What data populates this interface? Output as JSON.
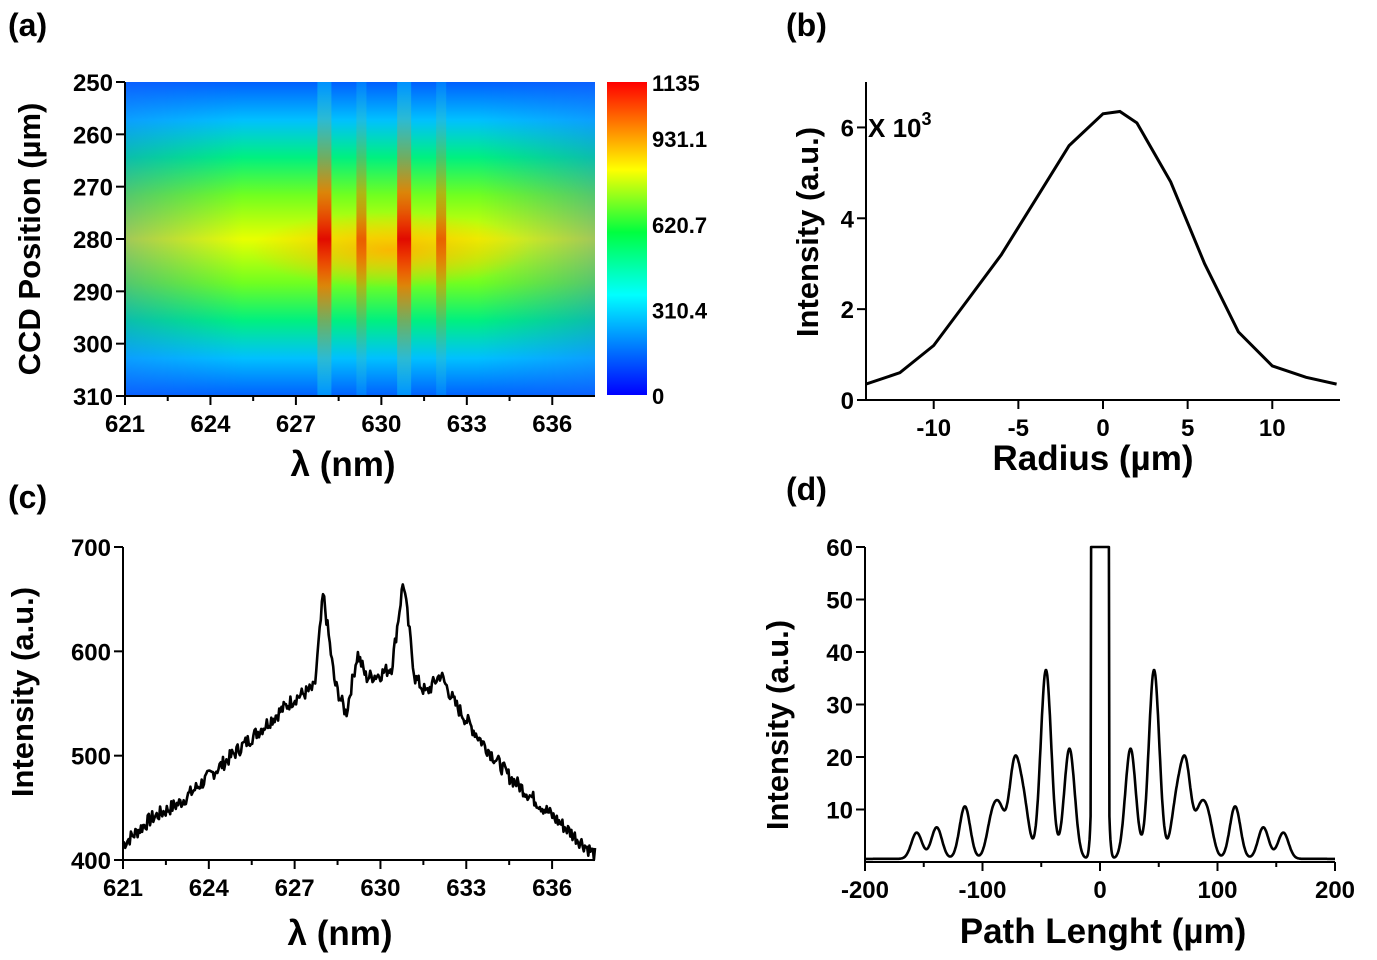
{
  "figure": {
    "panels": [
      "(a)",
      "(b)",
      "(c)",
      "(d)"
    ]
  },
  "chart_data": [
    {
      "id": "a",
      "type": "heatmap",
      "panel_label": "(a)",
      "xlabel": "λ (nm)",
      "ylabel": "CCD Position (µm)",
      "xlim": [
        621,
        637.5
      ],
      "ylim": [
        250,
        310
      ],
      "y_reversed": true,
      "x_ticks": [
        "621",
        "624",
        "627",
        "630",
        "633",
        "636"
      ],
      "y_ticks": [
        "250",
        "260",
        "270",
        "280",
        "290",
        "300",
        "310"
      ],
      "colorbar": {
        "ticks": [
          "1135",
          "931.1",
          "620.7",
          "310.4",
          "0"
        ],
        "range": [
          0,
          1135
        ],
        "colors": [
          "#0000ff",
          "#00a0ff",
          "#00ffff",
          "#00ff40",
          "#ffff00",
          "#ff8000",
          "#ff0000"
        ]
      },
      "center_y": 281,
      "peak_lines_nm": [
        628.0,
        629.3,
        630.8,
        632.1
      ]
    },
    {
      "id": "b",
      "type": "line",
      "panel_label": "(b)",
      "xlabel": "Radius (µm)",
      "ylabel": "Intensity (a.u.)",
      "multiplier_label": "X 10",
      "multiplier_exp": "3",
      "xlim": [
        -14,
        14
      ],
      "ylim": [
        0,
        7
      ],
      "x_ticks": [
        "-10",
        "-5",
        "0",
        "5",
        "10"
      ],
      "y_ticks": [
        "0",
        "2",
        "4",
        "6"
      ],
      "series": [
        {
          "x": [
            -14,
            -12,
            -10,
            -8,
            -6,
            -4,
            -2,
            0,
            1,
            2,
            4,
            6,
            8,
            10,
            12,
            13.8
          ],
          "values": [
            0.35,
            0.6,
            1.2,
            2.2,
            3.2,
            4.4,
            5.6,
            6.3,
            6.35,
            6.1,
            4.8,
            3.0,
            1.5,
            0.75,
            0.5,
            0.35
          ]
        }
      ]
    },
    {
      "id": "c",
      "type": "line",
      "panel_label": "(c)",
      "xlabel": "λ (nm)",
      "ylabel": "Intensity (a.u.)",
      "xlim": [
        621,
        637.5
      ],
      "ylim": [
        400,
        700
      ],
      "x_ticks": [
        "621",
        "624",
        "627",
        "630",
        "633",
        "636"
      ],
      "y_ticks": [
        "400",
        "500",
        "600",
        "700"
      ],
      "series": [
        {
          "x": [
            621,
            622,
            623,
            624,
            625,
            626,
            627,
            627.7,
            628.0,
            628.4,
            628.8,
            629.2,
            629.5,
            630.0,
            630.4,
            630.8,
            631.2,
            631.6,
            632.1,
            632.6,
            633.5,
            634.5,
            635.5,
            636.5,
            637.5
          ],
          "values": [
            415,
            440,
            455,
            480,
            505,
            530,
            555,
            565,
            655,
            570,
            540,
            598,
            575,
            578,
            585,
            668,
            575,
            560,
            578,
            550,
            515,
            480,
            455,
            430,
            405
          ]
        }
      ]
    },
    {
      "id": "d",
      "type": "line",
      "panel_label": "(d)",
      "xlabel": "Path Lenght (µm)",
      "ylabel": "Intensity (a.u.)",
      "xlim": [
        -200,
        200
      ],
      "ylim": [
        0,
        60
      ],
      "x_ticks": [
        "-200",
        "-100",
        "0",
        "100",
        "200"
      ],
      "y_ticks": [
        "10",
        "20",
        "30",
        "40",
        "50",
        "60"
      ],
      "series": [
        {
          "peaks_x": [
            -156,
            -139,
            -115,
            -92,
            -85,
            -73,
            -65,
            -46,
            -26,
            -3,
            3,
            26,
            46,
            65,
            73,
            85,
            92,
            115,
            139,
            156
          ],
          "peaks_y": [
            5,
            6,
            10,
            7,
            8,
            17,
            10,
            36,
            21,
            60,
            60,
            21,
            36,
            10,
            17,
            8,
            7,
            10,
            6,
            5
          ]
        }
      ]
    }
  ]
}
